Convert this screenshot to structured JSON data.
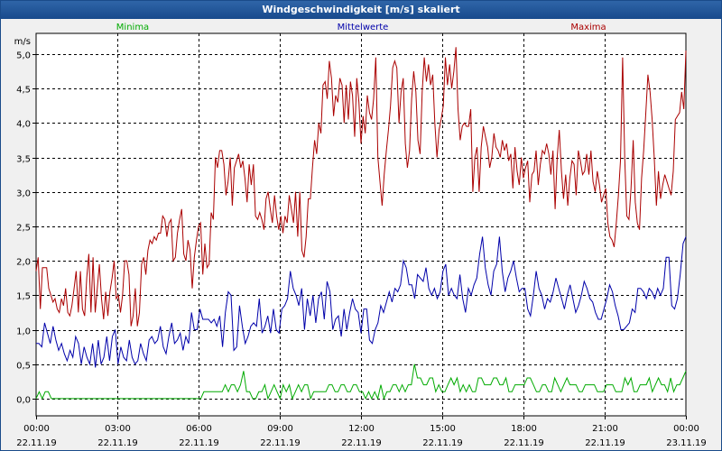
{
  "window": {
    "title": "Windgeschwindigkeit [m/s] skaliert"
  },
  "chart_data": {
    "type": "line",
    "title": "Windgeschwindigkeit [m/s] skaliert",
    "ylabel": "m/s",
    "ylim": [
      -0.25,
      5.3
    ],
    "yticks": [
      0.0,
      0.5,
      1.0,
      1.5,
      2.0,
      2.5,
      3.0,
      3.5,
      4.0,
      4.5,
      5.0
    ],
    "ytick_labels": [
      "0,0",
      "0,5",
      "1,0",
      "1,5",
      "2,0",
      "2,5",
      "3,0",
      "3,5",
      "4,0",
      "4,5",
      "5,0"
    ],
    "xlim": [
      0,
      24
    ],
    "xticks": [
      0,
      3,
      6,
      9,
      12,
      15,
      18,
      21,
      24
    ],
    "xtick_time": [
      "00:00",
      "03:00",
      "06:00",
      "09:00",
      "12:00",
      "15:00",
      "18:00",
      "21:00",
      "00:00"
    ],
    "xtick_date": [
      "22.11.19",
      "22.11.19",
      "22.11.19",
      "22.11.19",
      "22.11.19",
      "22.11.19",
      "22.11.19",
      "22.11.19",
      "23.11.19"
    ],
    "grid": true,
    "series": [
      {
        "name": "Minima",
        "color": "#00aa00",
        "values": [
          0.0,
          0.1,
          0.0,
          0.1,
          0.1,
          0.0,
          0.0,
          0.0,
          0.0,
          0.0,
          0.0,
          0.0,
          0.0,
          0.0,
          0.0,
          0.0,
          0.0,
          0.0,
          0.0,
          0.0,
          0.0,
          0.0,
          0.0,
          0.0,
          0.0,
          0.0,
          0.0,
          0.0,
          0.0,
          0.0,
          0.0,
          0.0,
          0.0,
          0.0,
          0.0,
          0.0,
          0.0,
          0.0,
          0.0,
          0.0,
          0.0,
          0.0,
          0.0,
          0.0,
          0.0,
          0.0,
          0.0,
          0.0,
          0.0,
          0.0,
          0.0,
          0.0,
          0.0,
          0.0,
          0.0,
          0.1,
          0.1,
          0.1,
          0.1,
          0.1,
          0.1,
          0.1,
          0.2,
          0.1,
          0.2,
          0.2,
          0.1,
          0.2,
          0.4,
          0.1,
          0.1,
          0.0,
          0.0,
          0.1,
          0.1,
          0.2,
          0.0,
          0.1,
          0.2,
          0.1,
          0.0,
          0.2,
          0.1,
          0.2,
          0.0,
          0.1,
          0.2,
          0.1,
          0.2,
          0.2,
          0.0,
          0.1,
          0.1,
          0.1,
          0.1,
          0.1,
          0.2,
          0.2,
          0.1,
          0.1,
          0.2,
          0.2,
          0.1,
          0.1,
          0.2,
          0.2,
          0.1,
          0.1,
          0.0,
          0.1,
          0.0,
          0.1,
          0.0,
          0.2,
          0.0,
          0.1,
          0.1,
          0.2,
          0.2,
          0.1,
          0.2,
          0.1,
          0.2,
          0.2,
          0.5,
          0.3,
          0.3,
          0.2,
          0.2,
          0.3,
          0.3,
          0.1,
          0.2,
          0.1,
          0.1,
          0.2,
          0.3,
          0.2,
          0.3,
          0.1,
          0.2,
          0.1,
          0.2,
          0.1,
          0.1,
          0.3,
          0.3,
          0.2,
          0.2,
          0.2,
          0.3,
          0.3,
          0.2,
          0.2,
          0.3,
          0.1,
          0.1,
          0.2,
          0.2,
          0.2,
          0.2,
          0.3,
          0.3,
          0.2,
          0.1,
          0.1,
          0.2,
          0.2,
          0.1,
          0.1,
          0.3,
          0.2,
          0.1,
          0.2,
          0.3,
          0.2,
          0.2,
          0.2,
          0.1,
          0.1,
          0.2,
          0.2,
          0.2,
          0.2,
          0.1,
          0.1,
          0.1,
          0.2,
          0.2,
          0.2,
          0.1,
          0.1,
          0.1,
          0.3,
          0.2,
          0.3,
          0.1,
          0.1,
          0.2,
          0.2,
          0.2,
          0.3,
          0.1,
          0.2,
          0.3,
          0.2,
          0.2,
          0.1,
          0.3,
          0.1,
          0.2,
          0.2,
          0.3,
          0.4
        ]
      },
      {
        "name": "Mittelwerte",
        "color": "#0000aa",
        "values": [
          0.8,
          0.8,
          0.75,
          1.1,
          0.95,
          0.8,
          1.05,
          0.85,
          0.7,
          0.8,
          0.65,
          0.55,
          0.7,
          0.6,
          0.9,
          0.8,
          0.5,
          0.75,
          0.6,
          0.5,
          0.8,
          0.45,
          0.85,
          0.5,
          0.6,
          0.9,
          0.55,
          0.9,
          1.0,
          0.5,
          0.75,
          0.6,
          0.55,
          0.85,
          0.6,
          0.5,
          0.55,
          0.8,
          0.65,
          0.55,
          0.85,
          0.9,
          0.8,
          0.85,
          1.05,
          0.75,
          0.65,
          0.9,
          1.1,
          0.8,
          0.85,
          0.95,
          0.7,
          0.9,
          0.8,
          1.25,
          1.0,
          1.0,
          1.3,
          1.15,
          1.15,
          1.15,
          1.1,
          1.15,
          1.05,
          1.2,
          0.75,
          1.25,
          1.55,
          1.5,
          0.7,
          0.75,
          1.35,
          1.05,
          0.8,
          0.9,
          1.05,
          1.1,
          1.05,
          1.45,
          0.95,
          1.05,
          1.2,
          0.95,
          1.3,
          1.0,
          0.95,
          1.3,
          1.35,
          1.45,
          1.85,
          1.6,
          1.5,
          1.35,
          1.6,
          1.0,
          1.45,
          1.2,
          1.5,
          1.1,
          1.45,
          1.55,
          1.15,
          1.7,
          1.55,
          1.0,
          1.15,
          1.2,
          0.9,
          1.3,
          1.0,
          1.25,
          1.45,
          1.3,
          1.25,
          0.95,
          1.3,
          1.3,
          0.85,
          0.8,
          1.0,
          1.1,
          1.35,
          1.25,
          1.4,
          1.55,
          1.4,
          1.6,
          1.55,
          1.65,
          2.0,
          1.9,
          1.65,
          1.65,
          1.45,
          1.8,
          1.75,
          1.7,
          1.9,
          1.6,
          1.5,
          1.6,
          1.45,
          1.55,
          1.85,
          1.95,
          1.5,
          1.6,
          1.5,
          1.45,
          1.8,
          1.45,
          1.25,
          1.6,
          1.5,
          1.65,
          1.75,
          2.1,
          2.35,
          1.9,
          1.65,
          1.5,
          1.85,
          1.95,
          2.35,
          1.85,
          1.55,
          1.75,
          1.85,
          2.0,
          1.75,
          1.55,
          1.6,
          1.6,
          1.3,
          1.2,
          1.5,
          1.85,
          1.6,
          1.5,
          1.3,
          1.45,
          1.4,
          1.55,
          1.75,
          1.6,
          1.45,
          1.3,
          1.5,
          1.65,
          1.45,
          1.25,
          1.35,
          1.5,
          1.7,
          1.6,
          1.45,
          1.4,
          1.25,
          1.15,
          1.15,
          1.3,
          1.45,
          1.65,
          1.55,
          1.35,
          1.2,
          1.0,
          1.0,
          1.05,
          1.1,
          1.3,
          1.25,
          1.6,
          1.6,
          1.55,
          1.45,
          1.6,
          1.55,
          1.45,
          1.6,
          1.5,
          1.6,
          2.05,
          2.05,
          1.35,
          1.3,
          1.45,
          1.8,
          2.25,
          2.35
        ]
      },
      {
        "name": "Maxima",
        "color": "#aa0000",
        "values": [
          1.85,
          2.05,
          1.3,
          1.9,
          1.9,
          1.9,
          1.6,
          1.5,
          1.4,
          1.45,
          1.3,
          1.25,
          1.45,
          1.35,
          1.6,
          1.25,
          1.2,
          1.35,
          1.6,
          1.85,
          1.25,
          1.85,
          1.3,
          1.2,
          1.75,
          2.1,
          1.25,
          2.05,
          1.25,
          1.6,
          1.95,
          1.45,
          1.15,
          1.55,
          1.2,
          1.55,
          1.75,
          2.0,
          1.45,
          1.5,
          1.25,
          1.5,
          2.0,
          2.0,
          1.8,
          1.05,
          1.2,
          1.6,
          1.05,
          1.25,
          1.95,
          2.05,
          1.8,
          2.15,
          2.3,
          2.25,
          2.35,
          2.3,
          2.4,
          2.4,
          2.65,
          2.6,
          2.35,
          2.55,
          2.6,
          2.0,
          2.05,
          2.4,
          2.6,
          2.75,
          2.1,
          2.0,
          2.3,
          2.15,
          1.6,
          2.05,
          2.3,
          2.5,
          2.55,
          1.8,
          2.25,
          1.9,
          1.95,
          2.7,
          2.6,
          3.5,
          3.35,
          3.6,
          3.6,
          3.4,
          2.95,
          3.15,
          3.5,
          2.8,
          3.35,
          3.45,
          3.55,
          3.35,
          3.45,
          3.2,
          2.85,
          3.4,
          3.1,
          3.4,
          2.65,
          2.6,
          2.7,
          2.6,
          2.45,
          2.9,
          3.0,
          2.75,
          2.55,
          2.95,
          2.65,
          2.45,
          2.65,
          2.4,
          2.65,
          2.55,
          2.95,
          2.75,
          2.55,
          3.0,
          2.35,
          3.0,
          2.15,
          2.05,
          2.35,
          2.9,
          2.9,
          3.35,
          3.75,
          3.55,
          4.0,
          3.85,
          4.55,
          4.6,
          4.35,
          4.9,
          4.65,
          4.1,
          4.4,
          4.3,
          4.65,
          4.55,
          4.0,
          4.55,
          4.05,
          4.6,
          4.4,
          3.8,
          4.65,
          4.3,
          3.7,
          4.1,
          3.85,
          4.4,
          4.15,
          4.05,
          4.35,
          4.95,
          3.5,
          3.15,
          2.8,
          3.25,
          3.6,
          3.9,
          4.25,
          4.8,
          4.9,
          4.8,
          4.0,
          4.45,
          4.65,
          3.7,
          3.35,
          3.6,
          4.35,
          4.75,
          4.45,
          3.75,
          3.55,
          4.45,
          4.95,
          4.6,
          4.85,
          4.55,
          4.7,
          4.0,
          3.5,
          3.9,
          4.05,
          4.25,
          4.95,
          4.55,
          4.85,
          4.5,
          4.75,
          5.1,
          4.2,
          3.75,
          3.95,
          4.0,
          3.95,
          3.95,
          4.2,
          3.0,
          3.5,
          3.65,
          3.0,
          3.65,
          3.95,
          3.8,
          3.65,
          3.35,
          3.5,
          3.85,
          3.65,
          3.6,
          3.5,
          3.75,
          3.6,
          3.7,
          3.45,
          3.55,
          3.05,
          3.65,
          3.3,
          3.1,
          3.5,
          3.2,
          3.35,
          3.45,
          2.85,
          3.25,
          3.3,
          3.6,
          3.1,
          3.4,
          3.6,
          3.55,
          3.7,
          3.55,
          3.25,
          3.6,
          2.75,
          3.5,
          3.9,
          3.3,
          2.9,
          3.25,
          2.8,
          3.2,
          3.45,
          3.4,
          2.95,
          3.6,
          3.45,
          3.25,
          3.3,
          3.55,
          3.25,
          3.6,
          3.15,
          3.0,
          3.3,
          3.1,
          2.85,
          2.95,
          3.05,
          2.55,
          2.35,
          2.3,
          2.2,
          2.55,
          2.95,
          3.45,
          4.95,
          3.5,
          2.65,
          2.6,
          3.05,
          3.75,
          2.85,
          2.55,
          2.45,
          3.2,
          3.6,
          4.15,
          4.7,
          4.45,
          4.05,
          3.5,
          2.8,
          3.3,
          2.9,
          3.1,
          3.25,
          3.15,
          3.05,
          2.95,
          3.3,
          4.05,
          4.1,
          4.15,
          4.45,
          4.2,
          5.05
        ]
      }
    ]
  }
}
